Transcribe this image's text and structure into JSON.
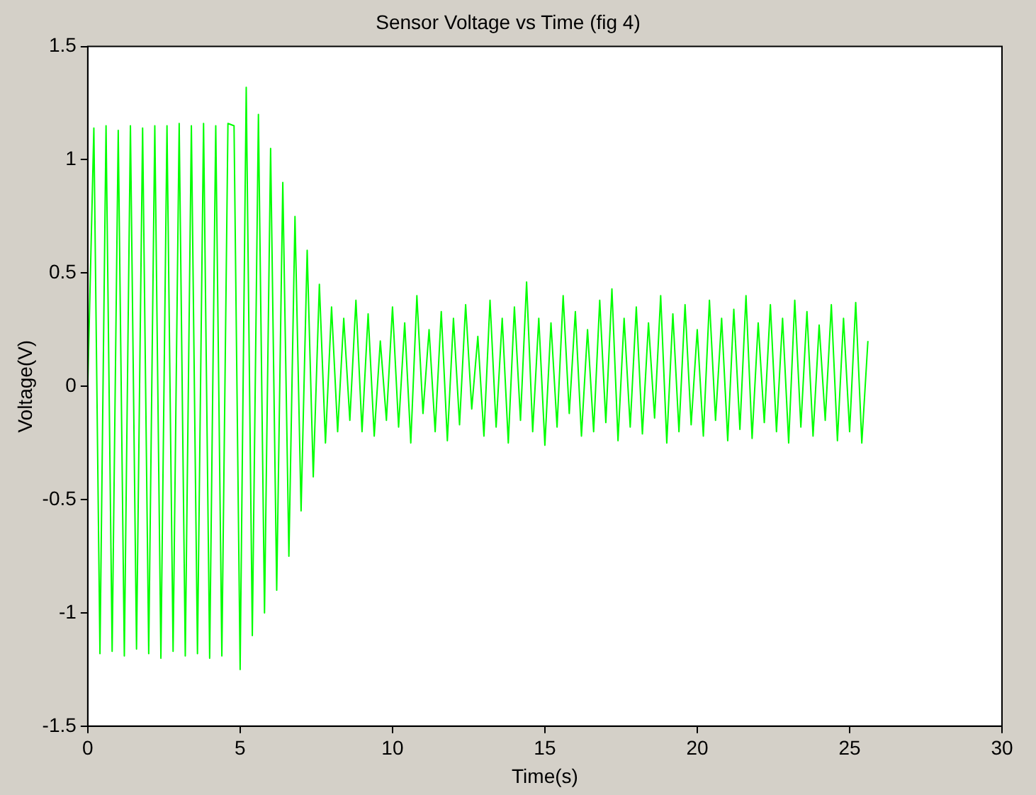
{
  "chart_data": {
    "type": "line",
    "title": "Sensor Voltage vs Time (fig 4)",
    "xlabel": "Time(s)",
    "ylabel": "Voltage(V)",
    "xlim": [
      0,
      30
    ],
    "xticks": [
      0,
      5,
      10,
      15,
      20,
      25,
      30
    ],
    "ylim": [
      -1.5,
      1.5
    ],
    "yticks": [
      -1.5,
      -1,
      -0.5,
      0,
      0.5,
      1,
      1.5
    ],
    "grid": false,
    "legend": false,
    "marker": "none",
    "line_style": "solid",
    "series": [
      {
        "color": "#00ff00",
        "x": [
          0,
          0.2,
          0.4,
          0.6,
          0.8,
          1,
          1.2,
          1.4,
          1.6,
          1.8,
          2,
          2.2,
          2.4,
          2.6,
          2.8,
          3,
          3.2,
          3.4,
          3.6,
          3.8,
          4,
          4.2,
          4.4,
          4.6,
          4.8,
          5,
          5.2,
          5.4,
          5.6,
          5.8,
          6,
          6.2,
          6.4,
          6.6,
          6.8,
          7,
          7.2,
          7.4,
          7.6,
          7.8,
          8,
          8.2,
          8.4,
          8.6,
          8.8,
          9,
          9.2,
          9.4,
          9.6,
          9.8,
          10,
          10.2,
          10.4,
          10.6,
          10.8,
          11,
          11.2,
          11.4,
          11.6,
          11.8,
          12,
          12.2,
          12.4,
          12.6,
          12.8,
          13,
          13.2,
          13.4,
          13.6,
          13.8,
          14,
          14.2,
          14.4,
          14.6,
          14.8,
          15,
          15.2,
          15.4,
          15.6,
          15.8,
          16,
          16.2,
          16.4,
          16.6,
          16.8,
          17,
          17.2,
          17.4,
          17.6,
          17.8,
          18,
          18.2,
          18.4,
          18.6,
          18.8,
          19,
          19.2,
          19.4,
          19.6,
          19.8,
          20,
          20.2,
          20.4,
          20.6,
          20.8,
          21,
          21.2,
          21.4,
          21.6,
          21.8,
          22,
          22.2,
          22.4,
          22.6,
          22.8,
          23,
          23.2,
          23.4,
          23.6,
          23.8,
          24,
          24.2,
          24.4,
          24.6,
          24.8,
          25,
          25.2,
          25.4,
          25.6
        ],
        "values": [
          0,
          1.14,
          -1.18,
          1.15,
          -1.17,
          1.13,
          -1.19,
          1.15,
          -1.16,
          1.14,
          -1.18,
          1.15,
          -1.2,
          1.15,
          -1.17,
          1.16,
          -1.19,
          1.15,
          -1.18,
          1.16,
          -1.2,
          1.15,
          -1.19,
          1.16,
          1.15,
          -1.25,
          1.32,
          -1.1,
          1.2,
          -1.0,
          1.05,
          -0.9,
          0.9,
          -0.75,
          0.75,
          -0.55,
          0.6,
          -0.4,
          0.45,
          -0.25,
          0.35,
          -0.2,
          0.3,
          -0.15,
          0.38,
          -0.2,
          0.32,
          -0.22,
          0.2,
          -0.15,
          0.35,
          -0.18,
          0.28,
          -0.25,
          0.4,
          -0.12,
          0.25,
          -0.2,
          0.33,
          -0.24,
          0.3,
          -0.17,
          0.36,
          -0.1,
          0.22,
          -0.22,
          0.38,
          -0.18,
          0.3,
          -0.25,
          0.35,
          -0.15,
          0.46,
          -0.2,
          0.3,
          -0.26,
          0.28,
          -0.18,
          0.4,
          -0.12,
          0.33,
          -0.22,
          0.25,
          -0.2,
          0.38,
          -0.16,
          0.43,
          -0.24,
          0.3,
          -0.18,
          0.35,
          -0.21,
          0.28,
          -0.14,
          0.4,
          -0.25,
          0.32,
          -0.2,
          0.36,
          -0.17,
          0.25,
          -0.22,
          0.38,
          -0.15,
          0.3,
          -0.24,
          0.34,
          -0.19,
          0.4,
          -0.23,
          0.28,
          -0.16,
          0.36,
          -0.2,
          0.3,
          -0.25,
          0.38,
          -0.18,
          0.33,
          -0.22,
          0.27,
          -0.15,
          0.36,
          -0.24,
          0.3,
          -0.2,
          0.37,
          -0.25,
          0.2
        ]
      }
    ]
  }
}
